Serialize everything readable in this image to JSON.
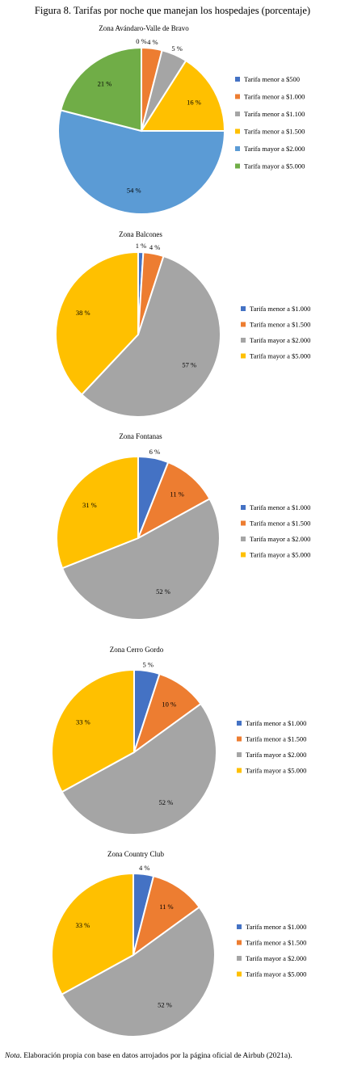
{
  "figure_title": "Figura 8. Tarifas por noche que manejan los hospedajes (porcentaje)",
  "note": {
    "prefix": "Nota",
    "text": ". Elaboración propia con base en datos arrojados por la página oficial de Airbub (2021a)."
  },
  "chart_data": [
    {
      "type": "pie",
      "title": "Zona Avándaro-Valle de Bravo",
      "categories": [
        "Tarifa menor a $500",
        "Tarifa menor a $1.000",
        "Tarifa menor a $1.100",
        "Tarifa menor a $1.500",
        "Tarifa mayor a $2.000",
        "Tarifa mayor a $5.000"
      ],
      "values": [
        0,
        4,
        5,
        16,
        54,
        21
      ],
      "labels": [
        "0 %",
        "4 %",
        "5 %",
        "16 %",
        "54 %",
        "21 %"
      ],
      "colors": [
        "#4472c4",
        "#ed7d31",
        "#a5a5a5",
        "#ffc000",
        "#5b9bd5",
        "#70ad47"
      ],
      "legend": "right"
    },
    {
      "type": "pie",
      "title": "Zona Balcones",
      "categories": [
        "Tarifa menor a $1.000",
        "Tarifa menor a $1.500",
        "Tarifa mayor a $2.000",
        "Tarifa mayor a $5.000"
      ],
      "values": [
        1,
        4,
        57,
        38
      ],
      "labels": [
        "1 %",
        "4 %",
        "57 %",
        "38 %"
      ],
      "colors": [
        "#4472c4",
        "#ed7d31",
        "#a5a5a5",
        "#ffc000"
      ],
      "legend": "right"
    },
    {
      "type": "pie",
      "title": "Zona Fontanas",
      "categories": [
        "Tarifa menor a $1.000",
        "Tarifa menor a $1.500",
        "Tarifa mayor a $2.000",
        "Tarifa mayor a $5.000"
      ],
      "values": [
        6,
        11,
        52,
        31
      ],
      "labels": [
        "6 %",
        "11 %",
        "52 %",
        "31 %"
      ],
      "colors": [
        "#4472c4",
        "#ed7d31",
        "#a5a5a5",
        "#ffc000"
      ],
      "legend": "right"
    },
    {
      "type": "pie",
      "title": "Zona Cerro Gordo",
      "categories": [
        "Tarifa menor a $1.000",
        "Tarifa menor a $1.500",
        "Tarifa mayor a $2.000",
        "Tarifa mayor a $5.000"
      ],
      "values": [
        5,
        10,
        52,
        33
      ],
      "labels": [
        "5 %",
        "10 %",
        "52 %",
        "33 %"
      ],
      "colors": [
        "#4472c4",
        "#ed7d31",
        "#a5a5a5",
        "#ffc000"
      ],
      "legend": "right"
    },
    {
      "type": "pie",
      "title": "Zona Country Club",
      "categories": [
        "Tarifa menor a $1.000",
        "Tarifa menor a $1.500",
        "Tarifa mayor a $2.000",
        "Tarifa mayor a $5.000"
      ],
      "values": [
        4,
        11,
        52,
        33
      ],
      "labels": [
        "4 %",
        "11 %",
        "52 %",
        "33 %"
      ],
      "colors": [
        "#4472c4",
        "#ed7d31",
        "#a5a5a5",
        "#ffc000"
      ],
      "legend": "right"
    }
  ]
}
